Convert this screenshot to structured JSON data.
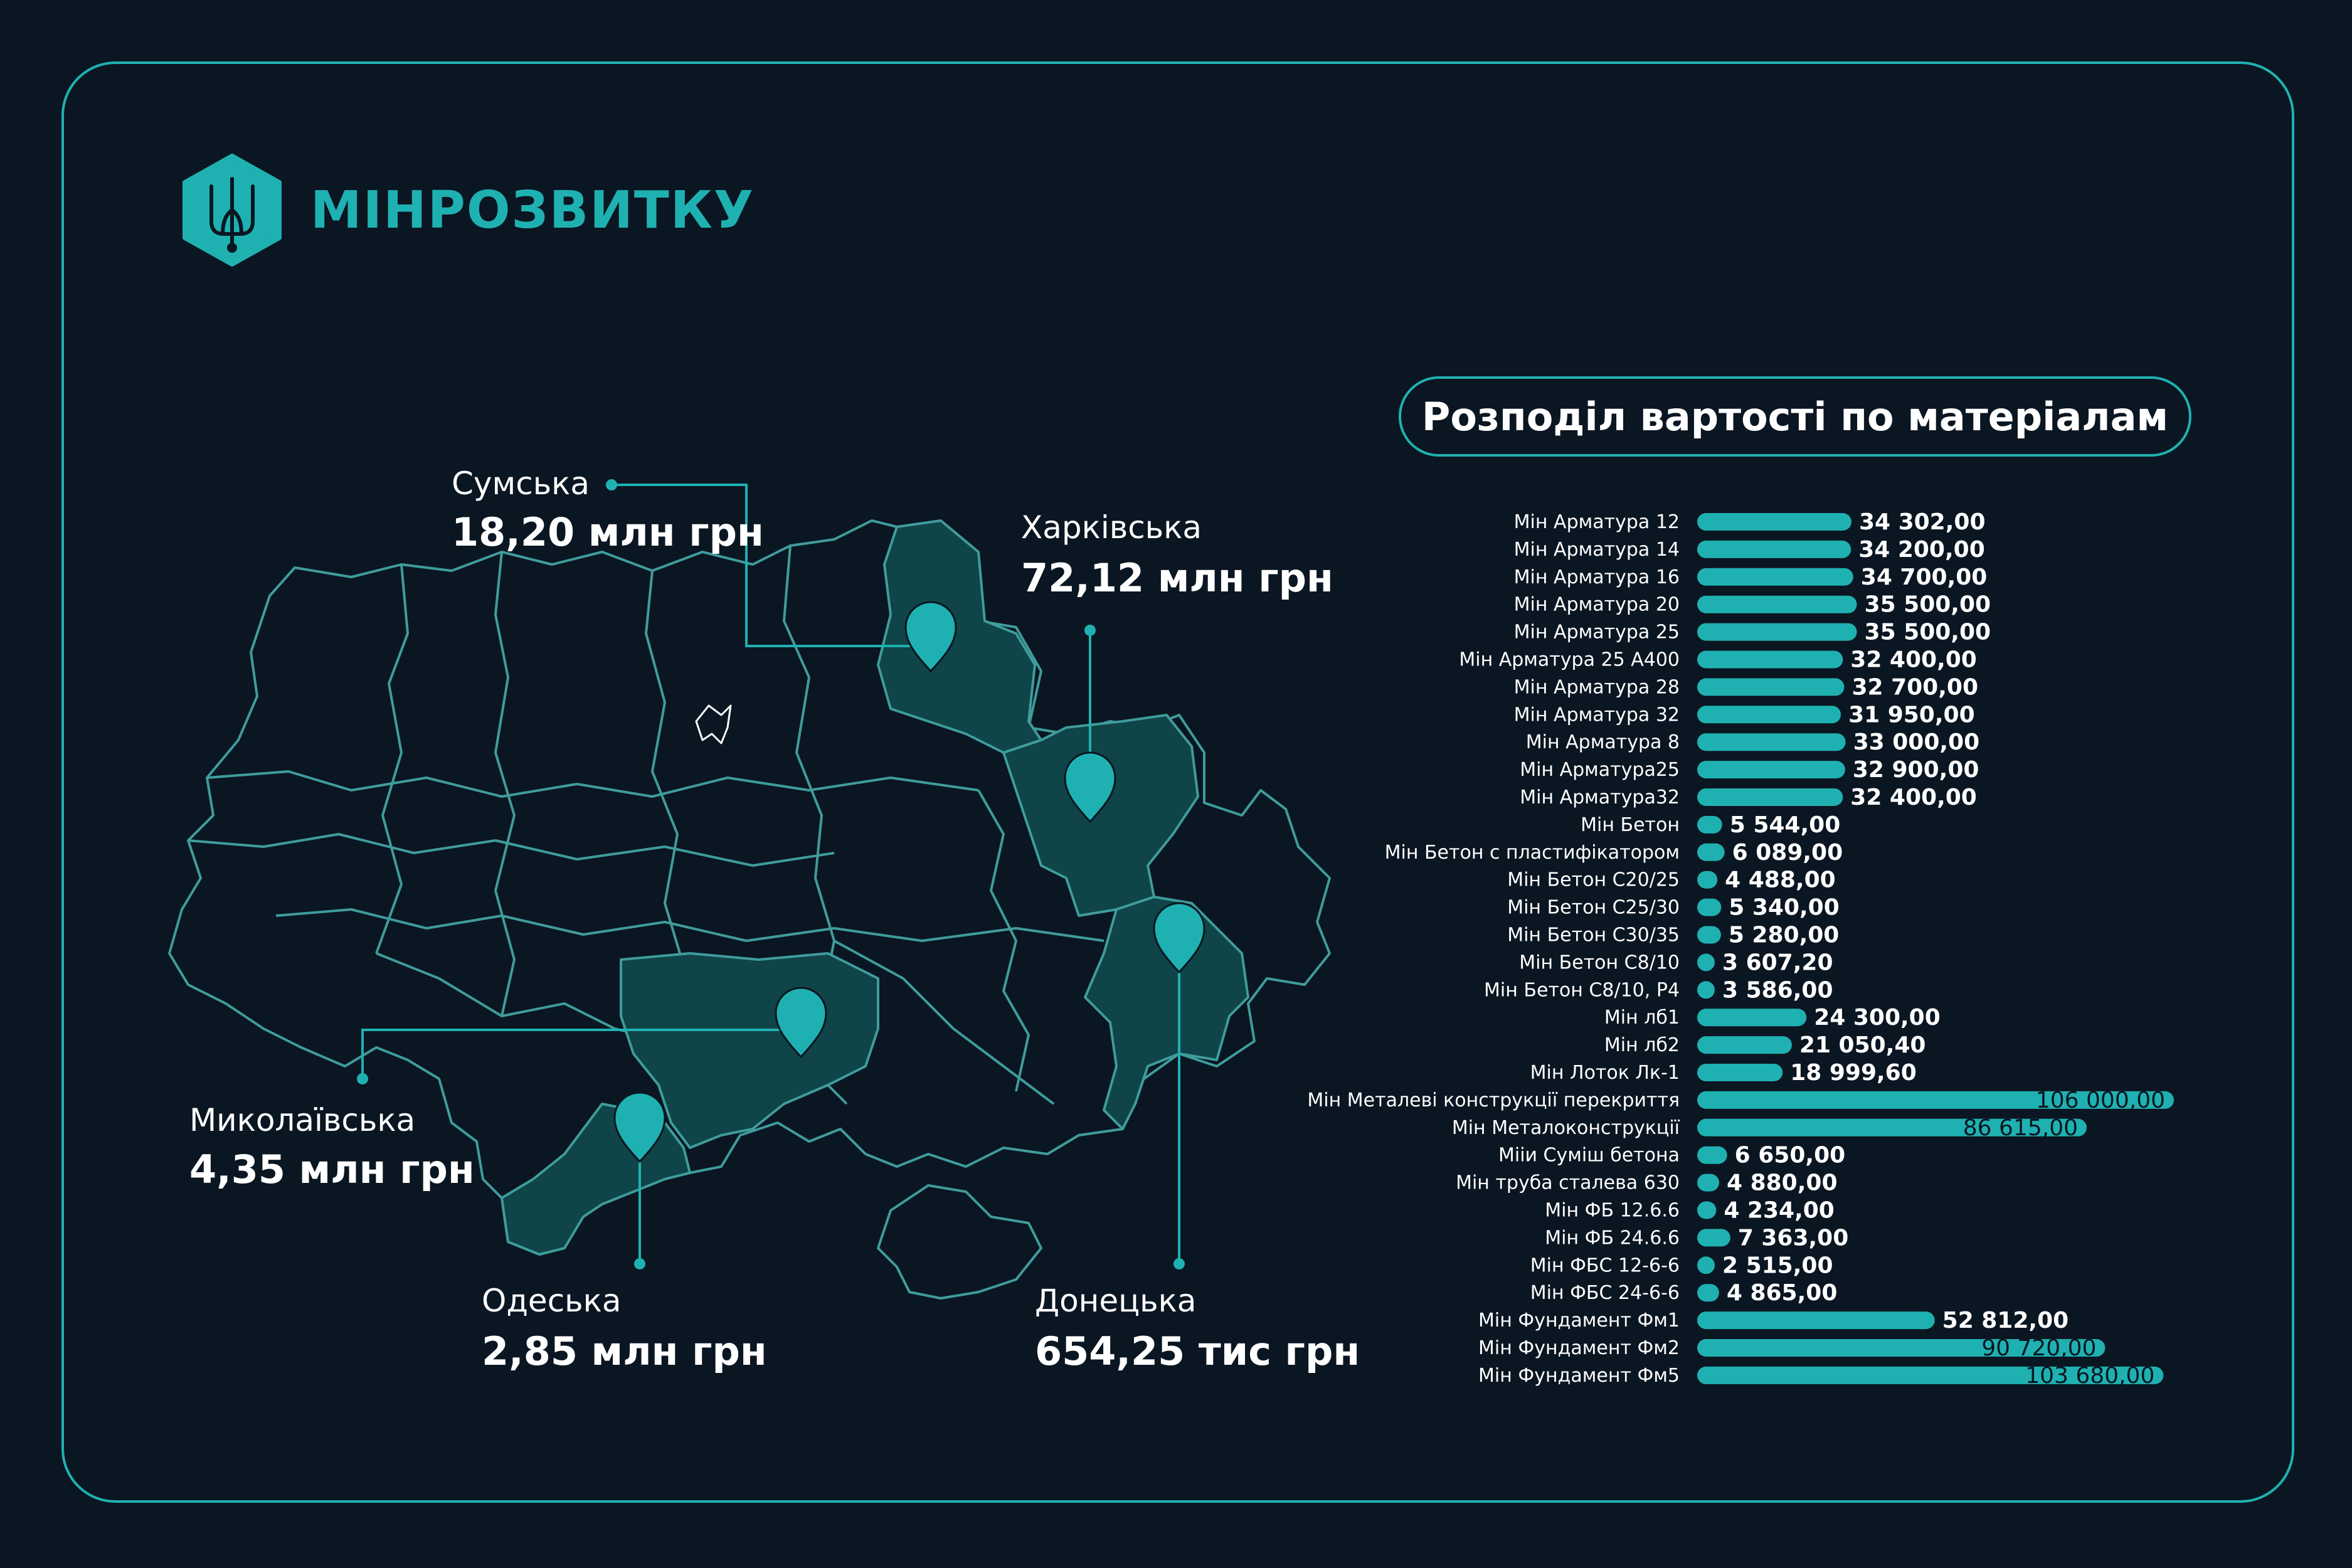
{
  "brand": {
    "name": "МІНРОЗВИТКУ",
    "logo_icon": "trident-icon"
  },
  "colors": {
    "background": "#0a1622",
    "accent": "#1fb1b1",
    "region_fill": "#0f4448",
    "outline": "#3f9c9c"
  },
  "map": {
    "regions": [
      {
        "id": "sumska",
        "name": "Сумська",
        "value": "18,20 млн грн"
      },
      {
        "id": "kharkivska",
        "name": "Харківська",
        "value": "72,12 млн грн"
      },
      {
        "id": "mykolaivska",
        "name": "Миколаївська",
        "value": "4,35 млн грн"
      },
      {
        "id": "odeska",
        "name": "Одеська",
        "value": "2,85 млн грн"
      },
      {
        "id": "donetska",
        "name": "Донецька",
        "value": "654,25 тис грн"
      }
    ]
  },
  "chart_data": {
    "type": "bar",
    "orientation": "horizontal",
    "title": "Розподіл вартості по матеріалам",
    "categories": [
      "Мін Арматура 12",
      "Мін Арматура 14",
      "Мін Арматура 16",
      "Мін Арматура 20",
      "Мін Арматура 25",
      "Мін Арматура 25 А400",
      "Мін Арматура 28",
      "Мін Арматура 32",
      "Мін Арматура 8",
      "Мін Арматура25",
      "Мін Арматура32",
      "Мін Бетон",
      "Мін Бетон с пластифікатором",
      "Мін Бетон С20/25",
      "Мін Бетон С25/30",
      "Мін Бетон С30/35",
      "Мін Бетон С8/10",
      "Мін Бетон С8/10, Р4",
      "Мін лб1",
      "Мін лб2",
      "Мін Лоток Лк-1",
      "Мін Металеві конструкції перекриття",
      "Мін Металоконструкції",
      "Мііи Суміш бетона",
      "Мін труба сталева 630",
      "Мін ФБ 12.6.6",
      "Мін ФБ 24.6.6",
      "Мін ФБС 12-6-6",
      "Мін ФБС 24-6-6",
      "Мін Фундамент Фм1",
      "Мін Фундамент Фм2",
      "Мін Фундамент Фм5"
    ],
    "values": [
      34302,
      34200,
      34700,
      35500,
      35500,
      32400,
      32700,
      31950,
      33000,
      32900,
      32400,
      5544,
      6089,
      4488,
      5340,
      5280,
      3607.2,
      3586,
      24300,
      21050.4,
      18999.6,
      106000,
      86615,
      6650,
      4880,
      4234,
      7363,
      2515,
      4865,
      52812,
      90720,
      103680
    ],
    "value_labels": [
      "34 302,00",
      "34 200,00",
      "34 700,00",
      "35 500,00",
      "35 500,00",
      "32 400,00",
      "32 700,00",
      "31 950,00",
      "33 000,00",
      "32 900,00",
      "32 400,00",
      "5 544,00",
      "6 089,00",
      "4 488,00",
      "5 340,00",
      "5 280,00",
      "3 607,20",
      "3 586,00",
      "24 300,00",
      "21 050,40",
      "18 999,60",
      "106 000,00",
      "86 615,00",
      "6 650,00",
      "4 880,00",
      "4 234,00",
      "7 363,00",
      "2 515,00",
      "4 865,00",
      "52 812,00",
      "90 720,00",
      "103 680,00"
    ],
    "xlim": [
      0,
      106000
    ],
    "grid": false,
    "legend": "none"
  }
}
